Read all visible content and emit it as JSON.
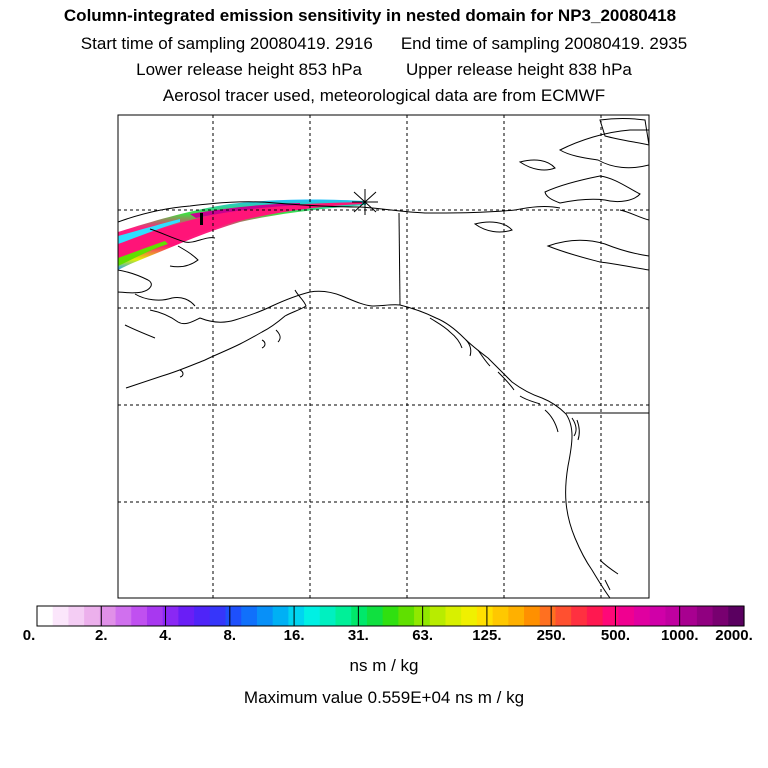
{
  "header": {
    "title": "Column-integrated emission sensitivity in nested domain for NP3_20080418",
    "start_time": "Start time of sampling 20080419.  2916",
    "end_time": "End time of sampling 20080419.  2935",
    "lower_height": "Lower release height  853 hPa",
    "upper_height": "Upper release height  838 hPa",
    "tracer_note": "Aerosol tracer used, meteorological data are from ECMWF"
  },
  "chart_data": {
    "type": "heatmap",
    "title": "Column-integrated emission sensitivity in nested domain for NP3_20080418",
    "colorbar": {
      "tick_labels": [
        "0.",
        "2.",
        "4.",
        "8.",
        "16.",
        "31.",
        "63.",
        "125.",
        "250.",
        "500.",
        "1000.",
        "2000."
      ],
      "units": "ns m / kg",
      "colors": [
        "#ffffff",
        "#fbe6fb",
        "#f4cdf4",
        "#ecb0ec",
        "#e090e8",
        "#d070ee",
        "#c050f0",
        "#a838f0",
        "#8a28f4",
        "#6a1ef6",
        "#4f24f8",
        "#3636fa",
        "#1e50fc",
        "#1070fb",
        "#0890f8",
        "#00b0f4",
        "#00d4f0",
        "#00f0e4",
        "#00f0c0",
        "#00f098",
        "#00e86a",
        "#10e040",
        "#30e010",
        "#60e000",
        "#90e800",
        "#b8ec00",
        "#d8f000",
        "#f0f000",
        "#ffe000",
        "#ffc800",
        "#ffb000",
        "#ff9000",
        "#ff7020",
        "#ff5030",
        "#ff3040",
        "#ff1850",
        "#ff0878",
        "#f00090",
        "#e000a0",
        "#d000a8",
        "#c000a0",
        "#a80090",
        "#900080",
        "#780070",
        "#5a0060"
      ]
    },
    "maximum_value": "Maximum value  0.559E+04 ns m / kg",
    "release_marker": "release-point-star"
  }
}
